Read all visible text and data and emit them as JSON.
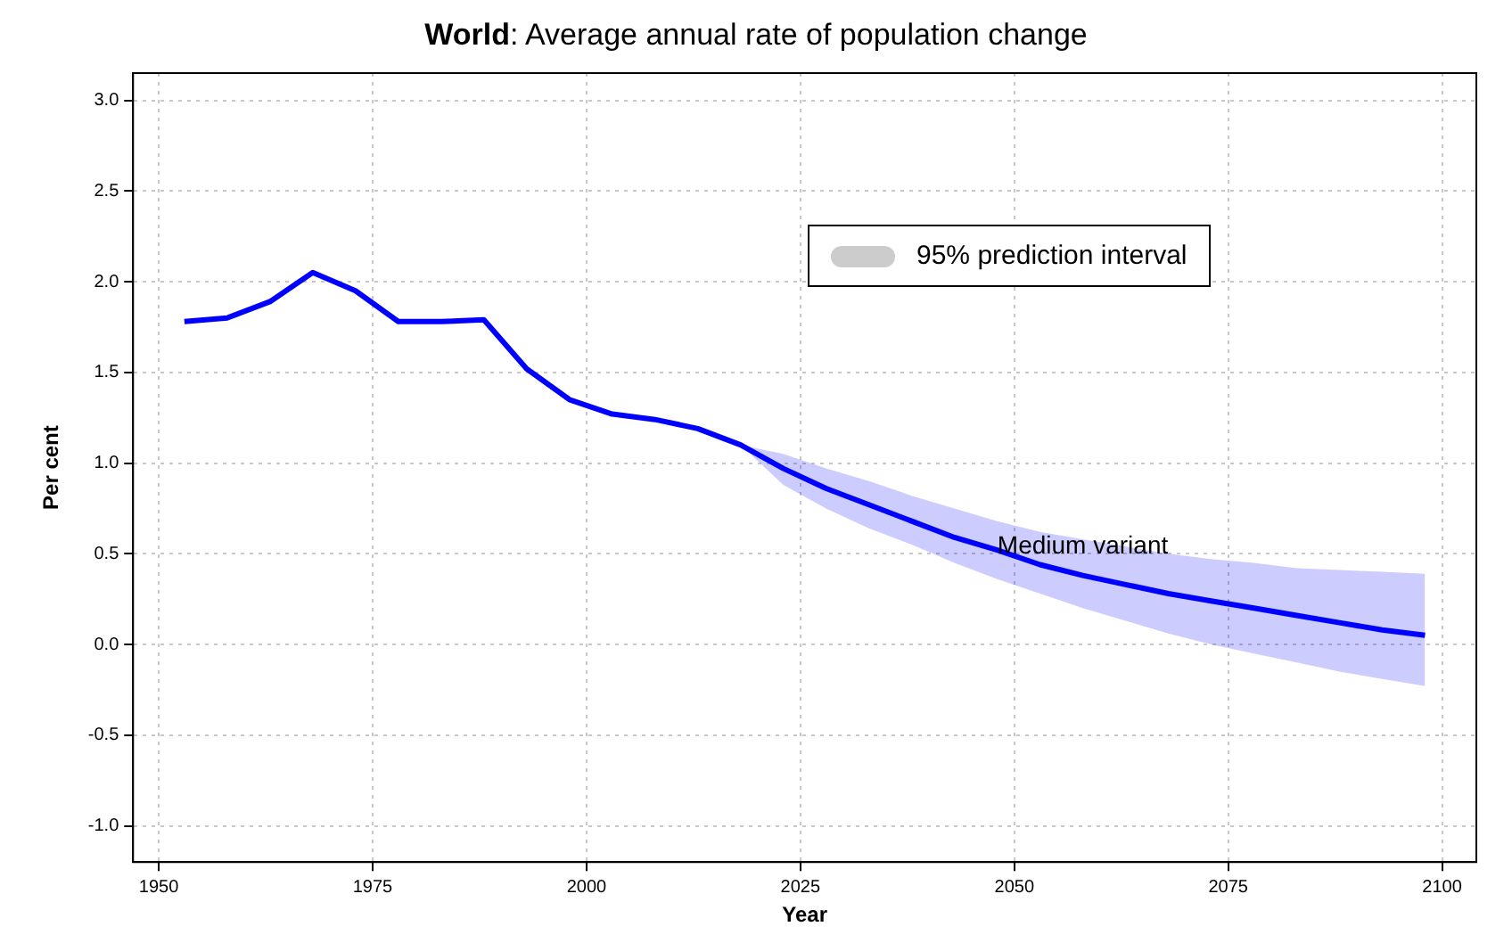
{
  "chart_data": {
    "type": "line",
    "title": "World: Average annual rate of population change",
    "xlabel": "Year",
    "ylabel": "Per cent",
    "legend_title": "95% prediction interval",
    "grid": true,
    "marker": "none",
    "line_style": "solid",
    "x": [
      1953,
      1958,
      1963,
      1968,
      1973,
      1978,
      1983,
      1988,
      1993,
      1998,
      2003,
      2008,
      2013,
      2018,
      2023,
      2028,
      2033,
      2038,
      2043,
      2048,
      2053,
      2058,
      2063,
      2068,
      2073,
      2078,
      2083,
      2088,
      2093,
      2098
    ],
    "series": [
      {
        "name": "Medium variant",
        "color": "#0000ff",
        "values": [
          1.78,
          1.8,
          1.89,
          2.05,
          1.95,
          1.78,
          1.78,
          1.79,
          1.52,
          1.35,
          1.27,
          1.24,
          1.19,
          1.1,
          0.97,
          0.86,
          0.77,
          0.68,
          0.59,
          0.52,
          0.44,
          0.38,
          0.33,
          0.28,
          0.24,
          0.2,
          0.16,
          0.12,
          0.08,
          0.05
        ],
        "lower": [
          null,
          null,
          null,
          null,
          null,
          null,
          null,
          null,
          null,
          null,
          null,
          null,
          null,
          1.1,
          0.88,
          0.75,
          0.64,
          0.55,
          0.45,
          0.36,
          0.28,
          0.2,
          0.13,
          0.06,
          0.0,
          -0.05,
          -0.1,
          -0.15,
          -0.19,
          -0.23
        ],
        "upper": [
          null,
          null,
          null,
          null,
          null,
          null,
          null,
          null,
          null,
          null,
          null,
          null,
          null,
          1.1,
          1.05,
          0.97,
          0.9,
          0.82,
          0.75,
          0.68,
          0.62,
          0.58,
          0.54,
          0.5,
          0.47,
          0.45,
          0.42,
          0.41,
          0.4,
          0.39
        ]
      }
    ],
    "xlim": [
      1947,
      2104
    ],
    "xticks": [
      1950,
      1975,
      2000,
      2025,
      2050,
      2075,
      2100
    ],
    "ylim": [
      -1.2,
      3.15
    ],
    "yticks": [
      {
        "value": -1,
        "label": "-1.0"
      },
      {
        "value": -0.5,
        "label": "-0.5"
      },
      {
        "value": 0,
        "label": "0.0"
      },
      {
        "value": 0.5,
        "label": "0.5"
      },
      {
        "value": 1,
        "label": "1.0"
      },
      {
        "value": 1.5,
        "label": "1.5"
      },
      {
        "value": 2,
        "label": "2.0"
      },
      {
        "value": 2.5,
        "label": "2.5"
      },
      {
        "value": 3,
        "label": "3.0"
      }
    ]
  }
}
